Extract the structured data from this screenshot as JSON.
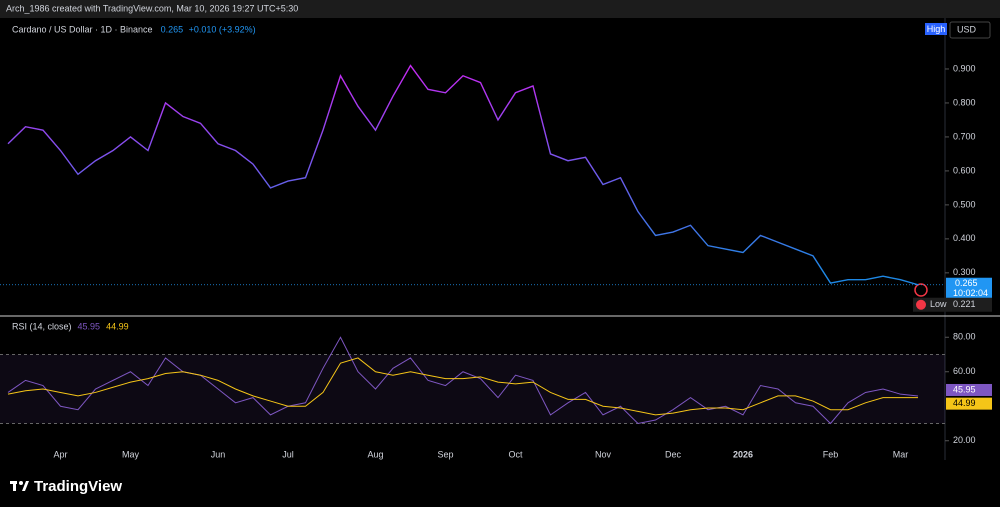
{
  "header": {
    "credit": "Arch_1986 created with TradingView.com, Mar 10, 2026 19:27 UTC+5:30",
    "brand": "TradingView"
  },
  "chart_data": [
    {
      "type": "line",
      "title": "Cardano / US Dollar · 1D · Binance",
      "change": "+0.010 (+3.92%)",
      "scale_mode": "High",
      "currency": "USD",
      "countdown": "10:02:04",
      "low": {
        "label": "Low",
        "value": 0.221
      },
      "categories": [
        null,
        null,
        null,
        "Apr",
        null,
        null,
        null,
        "May",
        null,
        null,
        null,
        null,
        "Jun",
        null,
        null,
        null,
        "Jul",
        null,
        null,
        null,
        null,
        "Aug",
        null,
        null,
        null,
        "Sep",
        null,
        null,
        null,
        "Oct",
        null,
        null,
        null,
        null,
        "Nov",
        null,
        null,
        null,
        "Dec",
        null,
        null,
        null,
        "2026",
        null,
        null,
        null,
        null,
        "Feb",
        null,
        null,
        null,
        "Mar",
        null
      ],
      "series": [
        {
          "name": "Cardano / US Dollar",
          "colors": [
            "#c42bf2",
            "#1e88e5"
          ],
          "values": [
            0.68,
            0.73,
            0.72,
            0.66,
            0.59,
            0.63,
            0.66,
            0.7,
            0.66,
            0.8,
            0.76,
            0.74,
            0.68,
            0.66,
            0.62,
            0.55,
            0.57,
            0.58,
            0.72,
            0.88,
            0.79,
            0.72,
            0.82,
            0.91,
            0.84,
            0.83,
            0.88,
            0.86,
            0.75,
            0.83,
            0.85,
            0.65,
            0.63,
            0.64,
            0.56,
            0.58,
            0.48,
            0.41,
            0.42,
            0.44,
            0.38,
            0.37,
            0.36,
            0.41,
            0.39,
            0.37,
            0.35,
            0.27,
            0.28,
            0.28,
            0.29,
            0.28,
            0.265
          ]
        }
      ],
      "ylim": [
        0.173,
        1.05
      ],
      "yticks": [
        {
          "value": 0.3,
          "label": "0.300"
        },
        {
          "value": 0.4,
          "label": "0.400"
        },
        {
          "value": 0.5,
          "label": "0.500"
        },
        {
          "value": 0.6,
          "label": "0.600"
        },
        {
          "value": 0.7,
          "label": "0.700"
        },
        {
          "value": 0.8,
          "label": "0.800"
        },
        {
          "value": 0.9,
          "label": "0.900"
        }
      ]
    },
    {
      "type": "line",
      "title": "RSI (14, close)",
      "series": [
        {
          "name": "RSI",
          "color": "#7e57c2",
          "values": [
            48,
            55,
            52,
            40,
            38,
            50,
            55,
            60,
            52,
            68,
            60,
            58,
            50,
            42,
            45,
            35,
            40,
            42,
            62,
            80,
            60,
            50,
            62,
            68,
            55,
            52,
            60,
            56,
            45,
            58,
            55,
            35,
            42,
            48,
            35,
            40,
            30,
            32,
            38,
            45,
            38,
            40,
            35,
            52,
            50,
            42,
            40,
            30,
            42,
            48,
            50,
            47,
            45.95
          ]
        },
        {
          "name": "RSI MA",
          "color": "#f5c518",
          "values": [
            47,
            49,
            50,
            48,
            46,
            48,
            51,
            54,
            56,
            59,
            60,
            58,
            55,
            50,
            46,
            43,
            40,
            40,
            48,
            65,
            68,
            60,
            58,
            60,
            58,
            56,
            56,
            57,
            54,
            53,
            54,
            48,
            44,
            44,
            40,
            39,
            37,
            35,
            36,
            38,
            39,
            39,
            38,
            42,
            46,
            46,
            43,
            38,
            38,
            42,
            45,
            45,
            44.99
          ]
        }
      ],
      "band": [
        30,
        70
      ],
      "ylim": [
        10,
        90
      ],
      "yticks": [
        {
          "value": 20,
          "label": "20.00"
        },
        {
          "value": 60,
          "label": "60.00"
        },
        {
          "value": 80,
          "label": "80.00"
        }
      ]
    }
  ]
}
